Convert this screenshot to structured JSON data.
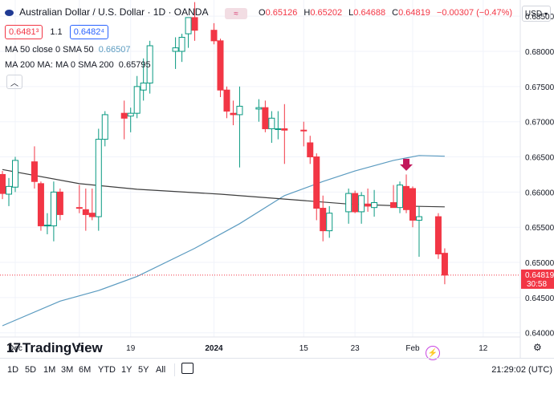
{
  "header": {
    "title": "Australian Dollar / U.S. Dollar · 1D · OANDA",
    "ohlc": [
      {
        "label": "O",
        "value": "0.65126"
      },
      {
        "label": "H",
        "value": "0.65202"
      },
      {
        "label": "L",
        "value": "0.64688"
      },
      {
        "label": "C",
        "value": "0.64819"
      },
      {
        "label": "",
        "value": "−0.00307 (−0.47%)"
      }
    ],
    "bid": "0.6481³",
    "spread": "1.1",
    "ask": "0.6482⁴",
    "ma50_label": "MA 50 close 0 SMA 50",
    "ma50_value": "0.66507",
    "ma200_label": "MA 200 MA: MA 0 SMA 200",
    "ma200_value": "0.65795",
    "currency": "USD",
    "flag_icon": "australia-flag-icon",
    "eye_icon": "eye-icon"
  },
  "colors": {
    "up": "#089981",
    "down": "#f23645",
    "ma50": "#5b9bc0",
    "ma200": "#3d3d3d",
    "arrow": "#c2185b",
    "price_label_bg": "#f23645"
  },
  "chart_data": {
    "type": "candlestick",
    "title": "Australian Dollar / U.S. Dollar · 1D · OANDA",
    "y_ticks": [
      0.685,
      0.68,
      0.675,
      0.67,
      0.665,
      0.66,
      0.655,
      0.65,
      0.645,
      0.64
    ],
    "y_tick_labels": [
      "0.68500",
      "0.68000",
      "0.67500",
      "0.67000",
      "0.66500",
      "0.66000",
      "0.65500",
      "0.65000",
      "0.64500",
      "0.64000"
    ],
    "ylim": [
      0.6394,
      0.6873
    ],
    "x_tick_labels": [
      {
        "label": "Dec",
        "date": "2023-12-01"
      },
      {
        "label": "11",
        "date": "2023-12-11"
      },
      {
        "label": "19",
        "date": "2023-12-19"
      },
      {
        "label": "2024",
        "date": "2024-01-01"
      },
      {
        "label": "15",
        "date": "2024-01-15"
      },
      {
        "label": "23",
        "date": "2024-01-23"
      },
      {
        "label": "Feb",
        "date": "2024-02-01"
      },
      {
        "label": "12",
        "date": "2024-02-12"
      }
    ],
    "candles": [
      {
        "date": "2023-11-29",
        "open": 0.6625,
        "high": 0.663,
        "low": 0.659,
        "close": 0.6598
      },
      {
        "date": "2023-11-30",
        "open": 0.6597,
        "high": 0.662,
        "low": 0.658,
        "close": 0.6608
      },
      {
        "date": "2023-12-01",
        "open": 0.6607,
        "high": 0.665,
        "low": 0.66,
        "close": 0.6645
      },
      {
        "date": "2023-12-04",
        "open": 0.6643,
        "high": 0.6665,
        "low": 0.6605,
        "close": 0.6615
      },
      {
        "date": "2023-12-05",
        "open": 0.6612,
        "high": 0.6615,
        "low": 0.6545,
        "close": 0.6552
      },
      {
        "date": "2023-12-06",
        "open": 0.6553,
        "high": 0.657,
        "low": 0.654,
        "close": 0.6553
      },
      {
        "date": "2023-12-07",
        "open": 0.6552,
        "high": 0.6615,
        "low": 0.653,
        "close": 0.66
      },
      {
        "date": "2023-12-08",
        "open": 0.66,
        "high": 0.6605,
        "low": 0.656,
        "close": 0.6568
      },
      {
        "date": "2023-12-11",
        "open": 0.6578,
        "high": 0.661,
        "low": 0.657,
        "close": 0.6577
      },
      {
        "date": "2023-12-12",
        "open": 0.6575,
        "high": 0.6605,
        "low": 0.6545,
        "close": 0.6568
      },
      {
        "date": "2023-12-13",
        "open": 0.657,
        "high": 0.6605,
        "low": 0.656,
        "close": 0.6565
      },
      {
        "date": "2023-12-14",
        "open": 0.6565,
        "high": 0.669,
        "low": 0.6545,
        "close": 0.6675
      },
      {
        "date": "2023-12-15",
        "open": 0.6675,
        "high": 0.6715,
        "low": 0.6665,
        "close": 0.671
      },
      {
        "date": "2023-12-18",
        "open": 0.6712,
        "high": 0.673,
        "low": 0.6675,
        "close": 0.6705
      },
      {
        "date": "2023-12-19",
        "open": 0.6708,
        "high": 0.672,
        "low": 0.6685,
        "close": 0.6712
      },
      {
        "date": "2023-12-20",
        "open": 0.6712,
        "high": 0.6765,
        "low": 0.6705,
        "close": 0.675
      },
      {
        "date": "2023-12-21",
        "open": 0.6745,
        "high": 0.679,
        "low": 0.673,
        "close": 0.6755
      },
      {
        "date": "2023-12-22",
        "open": 0.6755,
        "high": 0.6815,
        "low": 0.674,
        "close": 0.6808
      },
      {
        "date": "2023-12-26",
        "open": 0.68,
        "high": 0.682,
        "low": 0.6775,
        "close": 0.6805
      },
      {
        "date": "2023-12-27",
        "open": 0.68,
        "high": 0.6825,
        "low": 0.6785,
        "close": 0.682
      },
      {
        "date": "2023-12-28",
        "open": 0.6825,
        "high": 0.6845,
        "low": 0.6805,
        "close": 0.6848
      },
      {
        "date": "2023-12-29",
        "open": 0.6848,
        "high": 0.687,
        "low": 0.6815,
        "close": 0.683
      },
      {
        "date": "2024-01-01",
        "open": 0.683,
        "high": 0.684,
        "low": 0.681,
        "close": 0.6815
      },
      {
        "date": "2024-01-02",
        "open": 0.6815,
        "high": 0.6818,
        "low": 0.6735,
        "close": 0.6745
      },
      {
        "date": "2024-01-03",
        "open": 0.6745,
        "high": 0.675,
        "low": 0.6705,
        "close": 0.6715
      },
      {
        "date": "2024-01-04",
        "open": 0.6712,
        "high": 0.673,
        "low": 0.6695,
        "close": 0.671
      },
      {
        "date": "2024-01-05",
        "open": 0.671,
        "high": 0.675,
        "low": 0.6635,
        "close": 0.6722
      },
      {
        "date": "2024-01-08",
        "open": 0.6718,
        "high": 0.6732,
        "low": 0.67,
        "close": 0.672
      },
      {
        "date": "2024-01-09",
        "open": 0.672,
        "high": 0.673,
        "low": 0.6685,
        "close": 0.669
      },
      {
        "date": "2024-01-10",
        "open": 0.669,
        "high": 0.6715,
        "low": 0.667,
        "close": 0.6705
      },
      {
        "date": "2024-01-11",
        "open": 0.669,
        "high": 0.6715,
        "low": 0.6675,
        "close": 0.669
      },
      {
        "date": "2024-01-12",
        "open": 0.669,
        "high": 0.6725,
        "low": 0.664,
        "close": 0.6688
      },
      {
        "date": "2024-01-15",
        "open": 0.6688,
        "high": 0.67,
        "low": 0.6665,
        "close": 0.6687
      },
      {
        "date": "2024-01-16",
        "open": 0.667,
        "high": 0.668,
        "low": 0.664,
        "close": 0.665
      },
      {
        "date": "2024-01-17",
        "open": 0.665,
        "high": 0.6655,
        "low": 0.656,
        "close": 0.6577
      },
      {
        "date": "2024-01-18",
        "open": 0.6577,
        "high": 0.6595,
        "low": 0.653,
        "close": 0.6545
      },
      {
        "date": "2024-01-19",
        "open": 0.6545,
        "high": 0.658,
        "low": 0.6535,
        "close": 0.657
      },
      {
        "date": "2024-01-22",
        "open": 0.6572,
        "high": 0.6605,
        "low": 0.6555,
        "close": 0.6598
      },
      {
        "date": "2024-01-23",
        "open": 0.6598,
        "high": 0.6602,
        "low": 0.657,
        "close": 0.6572
      },
      {
        "date": "2024-01-24",
        "open": 0.6572,
        "high": 0.66,
        "low": 0.6555,
        "close": 0.6595
      },
      {
        "date": "2024-01-25",
        "open": 0.6583,
        "high": 0.6605,
        "low": 0.6572,
        "close": 0.658
      },
      {
        "date": "2024-01-26",
        "open": 0.6578,
        "high": 0.6603,
        "low": 0.6565,
        "close": 0.6585
      },
      {
        "date": "2024-01-29",
        "open": 0.6585,
        "high": 0.661,
        "low": 0.658,
        "close": 0.6578
      },
      {
        "date": "2024-01-30",
        "open": 0.6578,
        "high": 0.6615,
        "low": 0.657,
        "close": 0.661
      },
      {
        "date": "2024-01-31",
        "open": 0.6608,
        "high": 0.6625,
        "low": 0.657,
        "close": 0.6575
      },
      {
        "date": "2024-02-01",
        "open": 0.6605,
        "high": 0.6608,
        "low": 0.655,
        "close": 0.656
      },
      {
        "date": "2024-02-02",
        "open": 0.656,
        "high": 0.658,
        "low": 0.6508,
        "close": 0.6565
      },
      {
        "date": "2024-02-05",
        "open": 0.6565,
        "high": 0.657,
        "low": 0.6505,
        "close": 0.6512
      },
      {
        "date": "2024-02-06",
        "open": 0.6513,
        "high": 0.652,
        "low": 0.6469,
        "close": 0.6482
      }
    ],
    "ma50": [
      {
        "date": "2023-11-29",
        "value": 0.641
      },
      {
        "date": "2023-12-08",
        "value": 0.6445
      },
      {
        "date": "2023-12-14",
        "value": 0.646
      },
      {
        "date": "2023-12-20",
        "value": 0.648
      },
      {
        "date": "2023-12-29",
        "value": 0.652
      },
      {
        "date": "2024-01-05",
        "value": 0.6555
      },
      {
        "date": "2024-01-12",
        "value": 0.6595
      },
      {
        "date": "2024-01-18",
        "value": 0.6615
      },
      {
        "date": "2024-01-23",
        "value": 0.663
      },
      {
        "date": "2024-01-29",
        "value": 0.6645
      },
      {
        "date": "2024-02-02",
        "value": 0.6652
      },
      {
        "date": "2024-02-06",
        "value": 0.6651
      }
    ],
    "ma200": [
      {
        "date": "2023-11-29",
        "value": 0.6632
      },
      {
        "date": "2023-12-11",
        "value": 0.6612
      },
      {
        "date": "2023-12-20",
        "value": 0.6604
      },
      {
        "date": "2024-01-02",
        "value": 0.6597
      },
      {
        "date": "2024-01-12",
        "value": 0.659
      },
      {
        "date": "2024-01-22",
        "value": 0.6583
      },
      {
        "date": "2024-01-31",
        "value": 0.658
      },
      {
        "date": "2024-02-06",
        "value": 0.6579
      }
    ],
    "last_price": {
      "value": "0.64819",
      "countdown": "30:58"
    },
    "down_arrow_date": "2024-01-31",
    "down_arrow_value": 0.6637
  },
  "branding": {
    "logo_mark": "17",
    "logo_text": "TradingView"
  },
  "bottom_bar": {
    "ranges": [
      "1D",
      "5D",
      "1M",
      "3M",
      "6M",
      "YTD",
      "1Y",
      "5Y",
      "All"
    ],
    "calendar_icon": "calendar-range-icon",
    "time": "21:29:02 (UTC)"
  }
}
